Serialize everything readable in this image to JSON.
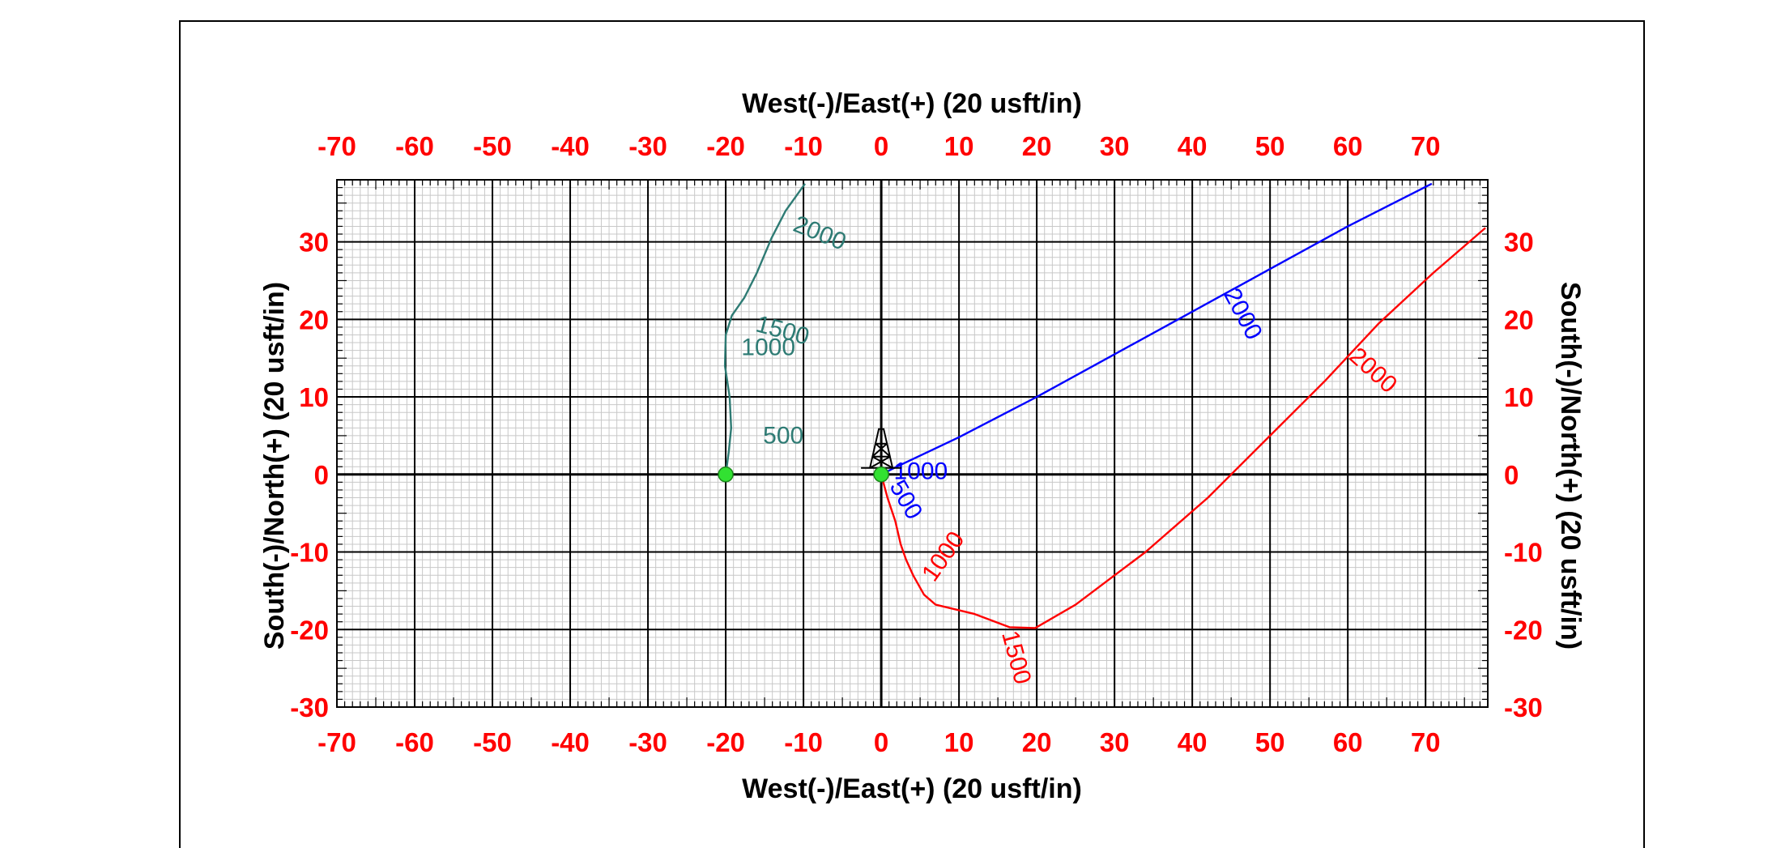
{
  "chart_data": {
    "type": "line",
    "title": "",
    "xlabel": "West(-)/East(+) (20 usft/in)",
    "ylabel": "South(-)/North(+) (20 usft/in)",
    "xlim": [
      -70,
      78
    ],
    "ylim": [
      -30,
      38
    ],
    "x_ticks": [
      -70,
      -60,
      -50,
      -40,
      -30,
      -20,
      -10,
      0,
      10,
      20,
      30,
      40,
      50,
      60,
      70
    ],
    "y_ticks": [
      -30,
      -20,
      -10,
      0,
      10,
      20,
      30
    ],
    "grid": true,
    "tick_color": "#ff0000",
    "wellhead_symbol": "rig-icon",
    "series": [
      {
        "color": "#2e7b74",
        "points": [
          [
            -20,
            0
          ],
          [
            -19.6,
            3
          ],
          [
            -19.3,
            6
          ],
          [
            -19.5,
            10
          ],
          [
            -20.1,
            14
          ],
          [
            -20,
            18
          ],
          [
            -19.2,
            20.5
          ],
          [
            -17.6,
            22.8
          ],
          [
            -16,
            26
          ],
          [
            -14.1,
            30.5
          ],
          [
            -12.3,
            34
          ],
          [
            -9.8,
            37.5
          ]
        ],
        "depth_labels": [
          {
            "text": "500",
            "x": -15.2,
            "y": 4,
            "angle": 0
          },
          {
            "text": "1000",
            "x": -18,
            "y": 15.4,
            "angle": 0
          },
          {
            "text": "1500",
            "x": -16.3,
            "y": 18.5,
            "angle": 15
          },
          {
            "text": "2000",
            "x": -11.5,
            "y": 31.5,
            "angle": 22
          }
        ]
      },
      {
        "color": "#0000ff",
        "points": [
          [
            0,
            0
          ],
          [
            2,
            1
          ],
          [
            10,
            4.8
          ],
          [
            20,
            10
          ],
          [
            30,
            15.5
          ],
          [
            40,
            21
          ],
          [
            50,
            26.5
          ],
          [
            60,
            32
          ],
          [
            70.8,
            37.5
          ]
        ],
        "depth_labels": [
          {
            "text": "500",
            "x": 1,
            "y": -1.5,
            "angle": 60
          },
          {
            "text": "1000",
            "x": 1.6,
            "y": -0.6,
            "angle": 0
          },
          {
            "text": "2000",
            "x": 44,
            "y": 23.3,
            "angle": 62
          }
        ]
      },
      {
        "color": "#ff0000",
        "points": [
          [
            0,
            0
          ],
          [
            0.8,
            -3
          ],
          [
            1.8,
            -6
          ],
          [
            2.5,
            -9
          ],
          [
            3.2,
            -11
          ],
          [
            4.1,
            -13
          ],
          [
            5.5,
            -15.5
          ],
          [
            7,
            -16.8
          ],
          [
            12,
            -18
          ],
          [
            16.5,
            -19.7
          ],
          [
            19.8,
            -19.8
          ],
          [
            25,
            -16.8
          ],
          [
            34,
            -10
          ],
          [
            42,
            -3
          ],
          [
            50,
            5
          ],
          [
            57,
            12
          ],
          [
            64,
            19.5
          ],
          [
            71,
            26
          ],
          [
            77.7,
            31.8
          ]
        ],
        "depth_labels": [
          {
            "text": "1000",
            "x": 6.8,
            "y": -14,
            "angle": -55
          },
          {
            "text": "1500",
            "x": 15.5,
            "y": -20.5,
            "angle": 75
          },
          {
            "text": "2000",
            "x": 60,
            "y": 15,
            "angle": 42
          }
        ]
      }
    ],
    "markers": [
      {
        "x": -20,
        "y": 0,
        "color": "#32e132"
      },
      {
        "x": 0,
        "y": 0,
        "color": "#32e132"
      }
    ]
  }
}
